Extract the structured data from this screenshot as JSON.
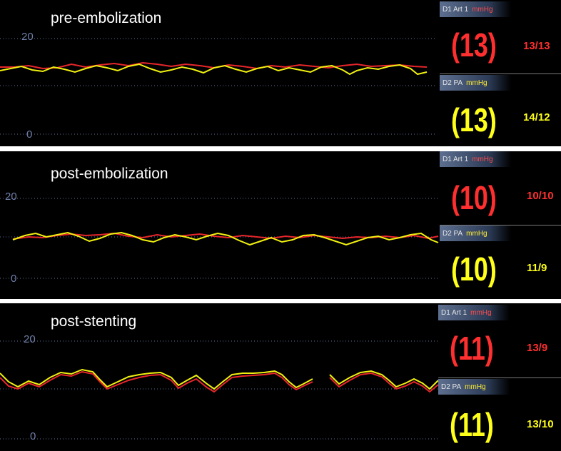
{
  "colors": {
    "art": "#e8262b",
    "pa": "#f2f210",
    "grid": "#5f6f99",
    "background": "#000000"
  },
  "panels": [
    {
      "caption": "pre-embolization",
      "tick_high": "20",
      "tick_low": "0",
      "art": {
        "label": "D1 Art 1",
        "unit": "mmHg",
        "mean": "(13)",
        "systolic_diastolic": "13/13"
      },
      "pa": {
        "label": "D2 PA",
        "unit": "mmHg",
        "mean": "(13)",
        "systolic_diastolic": "14/12"
      }
    },
    {
      "caption": "post-embolization",
      "tick_high": "20",
      "tick_low": "0",
      "art": {
        "label": "D1 Art 1",
        "unit": "mmHg",
        "mean": "(10)",
        "systolic_diastolic": "10/10"
      },
      "pa": {
        "label": "D2 PA",
        "unit": "mmHg",
        "mean": "(10)",
        "systolic_diastolic": "11/9"
      }
    },
    {
      "caption": "post-stenting",
      "tick_high": "20",
      "tick_low": "0",
      "art": {
        "label": "D1 Art 1",
        "unit": "mmHg",
        "mean": "(11)",
        "systolic_diastolic": "13/9"
      },
      "pa": {
        "label": "D2 PA",
        "unit": "mmHg",
        "mean": "(11)",
        "systolic_diastolic": "13/10"
      }
    }
  ]
}
